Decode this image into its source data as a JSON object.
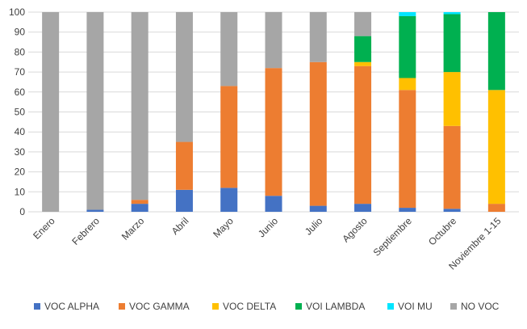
{
  "chart_data": {
    "type": "bar",
    "stacked": true,
    "title": "",
    "xlabel": "",
    "ylabel": "",
    "ylim": [
      0,
      100
    ],
    "yticks": [
      0,
      10,
      20,
      30,
      40,
      50,
      60,
      70,
      80,
      90,
      100
    ],
    "grid": true,
    "legend_position": "bottom",
    "categories": [
      "Enero",
      "Febrero",
      "Marzo",
      "Abril",
      "Mayo",
      "Junio",
      "Julio",
      "Agosto",
      "Septiembre",
      "Octubre",
      "Noviembre 1-15"
    ],
    "series": [
      {
        "name": "VOC ALPHA",
        "color": "#4472c4",
        "values": [
          0,
          1,
          4,
          11,
          12,
          8,
          3,
          4,
          2,
          1.5,
          0
        ]
      },
      {
        "name": "VOC GAMMA",
        "color": "#ed7d31",
        "values": [
          0,
          0,
          2,
          24,
          51,
          64,
          72,
          69,
          59,
          41.5,
          4
        ]
      },
      {
        "name": "VOC DELTA",
        "color": "#ffc000",
        "values": [
          0,
          0,
          0,
          0,
          0,
          0,
          0,
          2,
          6,
          27,
          57
        ]
      },
      {
        "name": "VOI LAMBDA",
        "color": "#00b050",
        "values": [
          0,
          0,
          0,
          0,
          0,
          0,
          0,
          13,
          31,
          29,
          39
        ]
      },
      {
        "name": "VOI MU",
        "color": "#00e5ff",
        "values": [
          0,
          0,
          0,
          0,
          0,
          0,
          0,
          0,
          2,
          1,
          0
        ]
      },
      {
        "name": "NO VOC",
        "color": "#a6a6a6",
        "values": [
          100,
          99,
          94,
          65,
          37,
          28,
          25,
          12,
          0,
          0,
          0
        ]
      }
    ]
  }
}
